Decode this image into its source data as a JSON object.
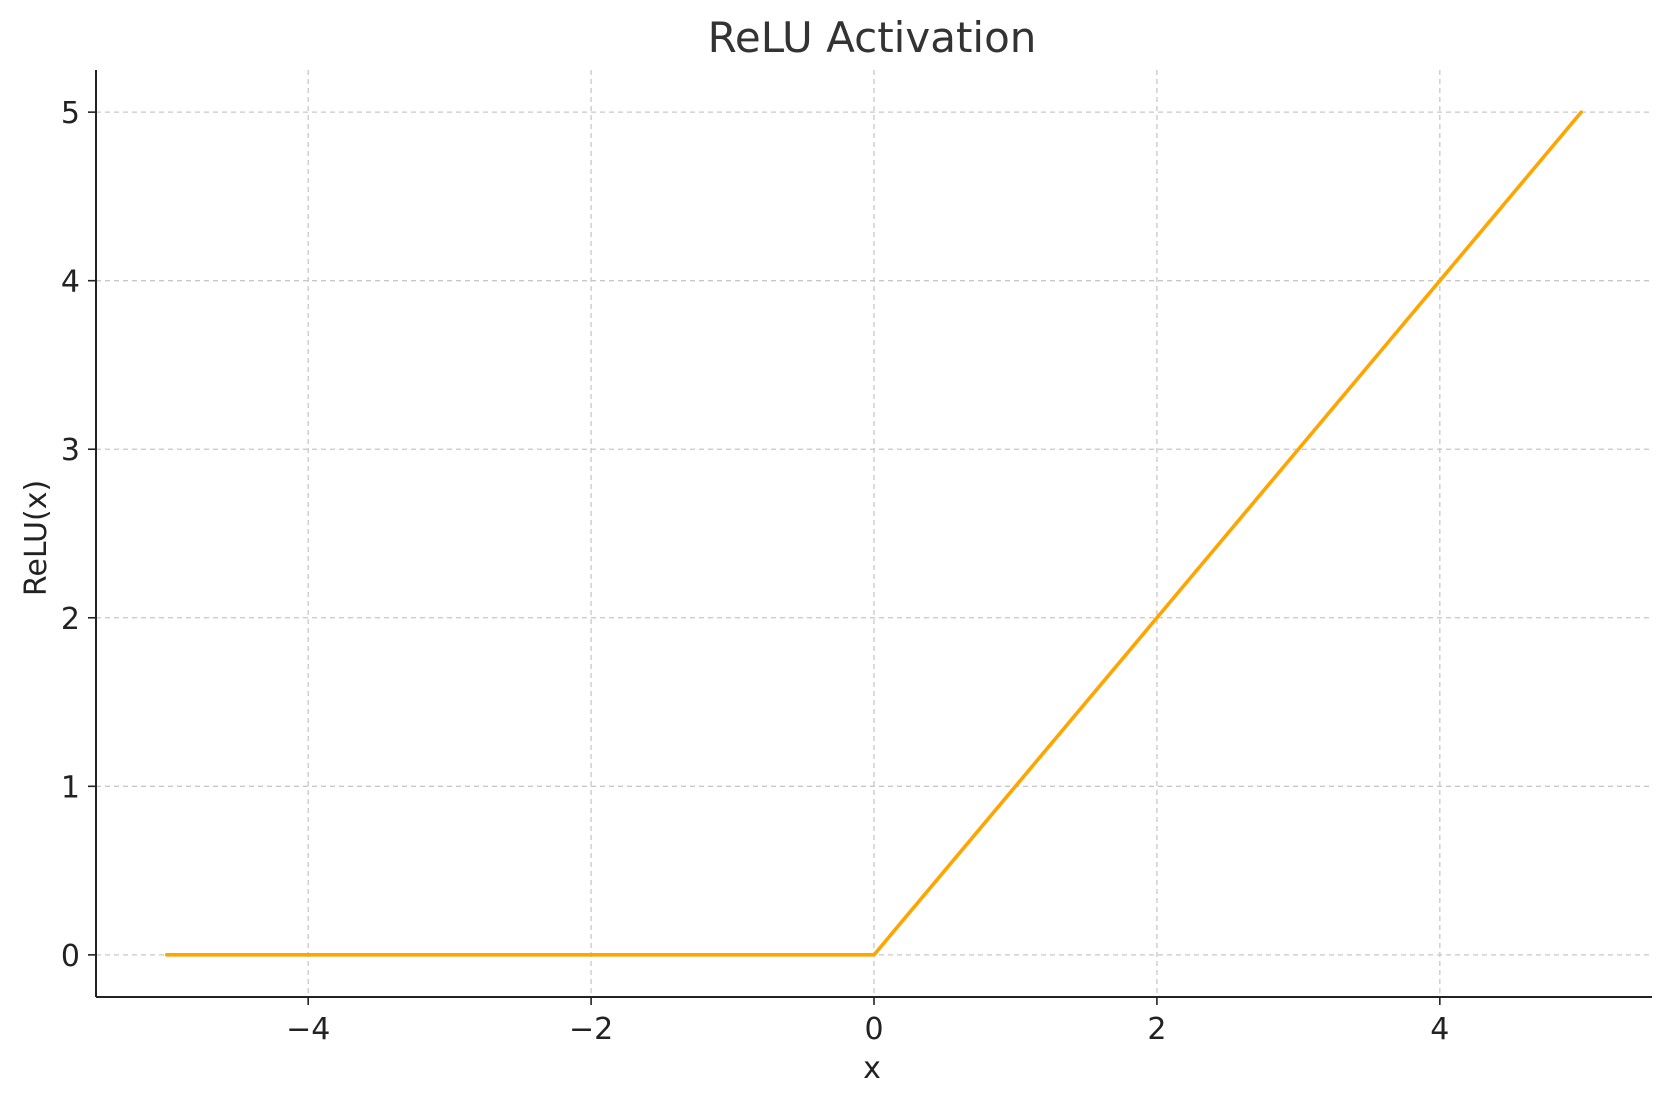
{
  "chart_data": {
    "type": "line",
    "title": "ReLU Activation",
    "xlabel": "x",
    "ylabel": "ReLU(x)",
    "xlim": [
      -5.5,
      5.5
    ],
    "ylim": [
      -0.25,
      5.25
    ],
    "x_ticks": [
      -4,
      -2,
      0,
      2,
      4
    ],
    "x_tick_labels": [
      "−4",
      "−2",
      "0",
      "2",
      "4"
    ],
    "y_ticks": [
      0,
      1,
      2,
      3,
      4,
      5
    ],
    "y_tick_labels": [
      "0",
      "1",
      "2",
      "3",
      "4",
      "5"
    ],
    "grid": true,
    "grid_style": "dashed",
    "series": [
      {
        "color": "#FFA500",
        "x": [
          -5,
          -4,
          -3,
          -2,
          -1,
          0,
          1,
          2,
          3,
          4,
          5
        ],
        "y": [
          0,
          0,
          0,
          0,
          0,
          0,
          1,
          2,
          3,
          4,
          5
        ]
      }
    ]
  }
}
